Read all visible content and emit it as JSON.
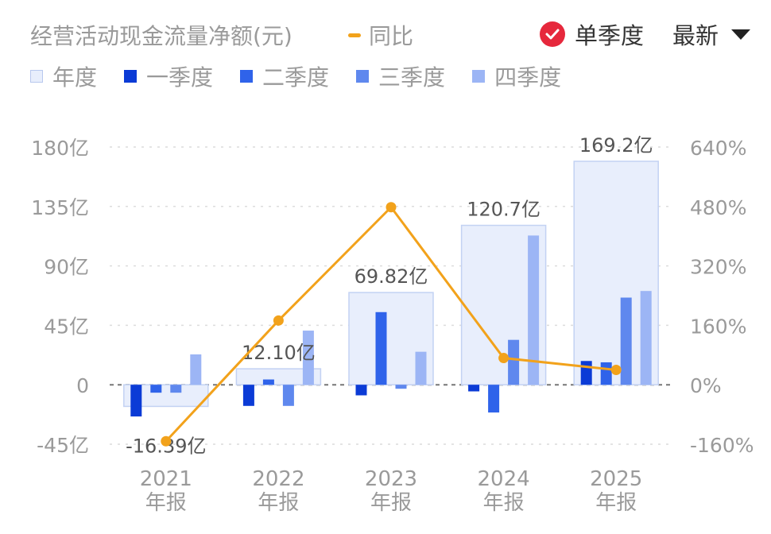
{
  "header": {
    "title": "经营活动现金流量净额(元)",
    "yoy_label": "同比",
    "season_label": "单季度",
    "sort_label": "最新"
  },
  "legend": [
    {
      "label": "年度",
      "color": "#e8eefc"
    },
    {
      "label": "一季度",
      "color": "#0b3bd6"
    },
    {
      "label": "二季度",
      "color": "#2f63ea"
    },
    {
      "label": "三季度",
      "color": "#5f88ee"
    },
    {
      "label": "四季度",
      "color": "#9cb5f5"
    }
  ],
  "chart_data": {
    "type": "bar",
    "categories": [
      "2021",
      "2022",
      "2023",
      "2024",
      "2025"
    ],
    "category_sublabel": "年报",
    "series": [
      {
        "name": "年度",
        "values": [
          -16.39,
          12.1,
          69.82,
          120.7,
          169.2
        ],
        "labels": [
          "-16.39亿",
          "12.10亿",
          "69.82亿",
          "120.7亿",
          "169.2亿"
        ]
      },
      {
        "name": "一季度",
        "values": [
          -24,
          -16,
          -8,
          -5,
          18
        ]
      },
      {
        "name": "二季度",
        "values": [
          -6,
          4,
          55,
          -21,
          17
        ]
      },
      {
        "name": "三季度",
        "values": [
          -6,
          -16,
          -3,
          34,
          66
        ]
      },
      {
        "name": "四季度",
        "values": [
          23,
          41,
          25,
          113,
          71
        ]
      }
    ],
    "line_series": {
      "name": "同比",
      "values": [
        -152,
        173,
        478,
        72,
        40
      ]
    },
    "y_left": {
      "ticks": [
        180,
        135,
        90,
        45,
        0,
        -45
      ],
      "tick_labels": [
        "180亿",
        "135亿",
        "90亿",
        "45亿",
        "0",
        "-45亿"
      ],
      "range": [
        -45,
        180
      ]
    },
    "y_right": {
      "ticks": [
        640,
        480,
        320,
        160,
        0,
        -160
      ],
      "tick_labels": [
        "640%",
        "480%",
        "320%",
        "160%",
        "0%",
        "-160%"
      ],
      "range": [
        -160,
        640
      ]
    },
    "grid": true
  }
}
